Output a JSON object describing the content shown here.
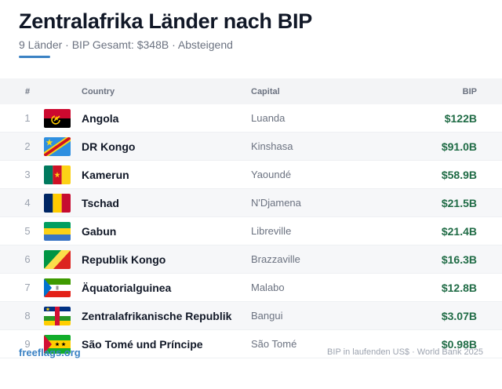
{
  "title": "Zentralafrika Länder nach BIP",
  "subtitle": "9 Länder · BIP Gesamt: $348B · Absteigend",
  "table": {
    "headers": {
      "rank": "#",
      "country": "Country",
      "capital": "Capital",
      "gdp": "BIP"
    },
    "rows": [
      {
        "rank": "1",
        "flag": "angola-flag-icon",
        "country": "Angola",
        "capital": "Luanda",
        "gdp": "$122B"
      },
      {
        "rank": "2",
        "flag": "dr-congo-flag-icon",
        "country": "DR Kongo",
        "capital": "Kinshasa",
        "gdp": "$91.0B"
      },
      {
        "rank": "3",
        "flag": "cameroon-flag-icon",
        "country": "Kamerun",
        "capital": "Yaoundé",
        "gdp": "$58.9B"
      },
      {
        "rank": "4",
        "flag": "chad-flag-icon",
        "country": "Tschad",
        "capital": "N'Djamena",
        "gdp": "$21.5B"
      },
      {
        "rank": "5",
        "flag": "gabon-flag-icon",
        "country": "Gabun",
        "capital": "Libreville",
        "gdp": "$21.4B"
      },
      {
        "rank": "6",
        "flag": "republic-of-congo-flag-icon",
        "country": "Republik Kongo",
        "capital": "Brazzaville",
        "gdp": "$16.3B"
      },
      {
        "rank": "7",
        "flag": "equatorial-guinea-flag-icon",
        "country": "Äquatorialguinea",
        "capital": "Malabo",
        "gdp": "$12.8B"
      },
      {
        "rank": "8",
        "flag": "central-african-republic-flag-icon",
        "country": "Zentralafrikanische Republik",
        "capital": "Bangui",
        "gdp": "$3.07B"
      },
      {
        "rank": "9",
        "flag": "sao-tome-and-principe-flag-icon",
        "country": "São Tomé und Príncipe",
        "capital": "São Tomé",
        "gdp": "$0.98B"
      }
    ]
  },
  "footer": {
    "source_link": "freeflags.org",
    "note": "BIP in laufenden US$ · World Bank 2025"
  },
  "colors": {
    "accent": "#3b82c4",
    "value_green": "#1f6b45"
  }
}
